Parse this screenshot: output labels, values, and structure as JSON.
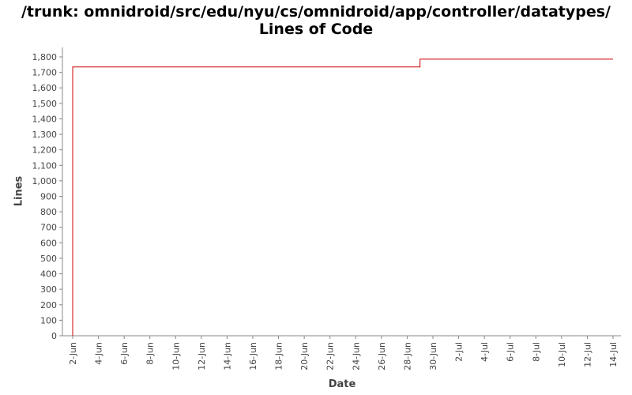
{
  "chart_data": {
    "type": "line",
    "title": "/trunk: omnidroid/src/edu/nyu/cs/omnidroid/app/controller/datatypes/",
    "subtitle": "Lines of Code",
    "xlabel": "Date",
    "ylabel": "Lines",
    "ylim": [
      0,
      1800
    ],
    "y_ticks": [
      0,
      100,
      200,
      300,
      400,
      500,
      600,
      700,
      800,
      900,
      1000,
      1100,
      1200,
      1300,
      1400,
      1500,
      1600,
      1700,
      1800
    ],
    "y_tick_labels": [
      "0",
      "100",
      "200",
      "300",
      "400",
      "500",
      "600",
      "700",
      "800",
      "900",
      "1,000",
      "1,100",
      "1,200",
      "1,300",
      "1,400",
      "1,500",
      "1,600",
      "1,700",
      "1,800"
    ],
    "x_ticks": [
      "2-Jun",
      "4-Jun",
      "6-Jun",
      "8-Jun",
      "10-Jun",
      "12-Jun",
      "14-Jun",
      "16-Jun",
      "18-Jun",
      "20-Jun",
      "22-Jun",
      "24-Jun",
      "26-Jun",
      "28-Jun",
      "30-Jun",
      "2-Jul",
      "4-Jul",
      "6-Jul",
      "8-Jul",
      "10-Jul",
      "12-Jul",
      "14-Jul"
    ],
    "xlim": [
      "2-Jun",
      "14-Jul"
    ],
    "grid": false,
    "line_color": "#cc0000",
    "series": [
      {
        "step": true,
        "x": [
          "2-Jun",
          "2-Jun",
          "29-Jun",
          "29-Jun",
          "14-Jul"
        ],
        "y": [
          0,
          1735,
          1735,
          1785,
          1785
        ]
      }
    ]
  }
}
